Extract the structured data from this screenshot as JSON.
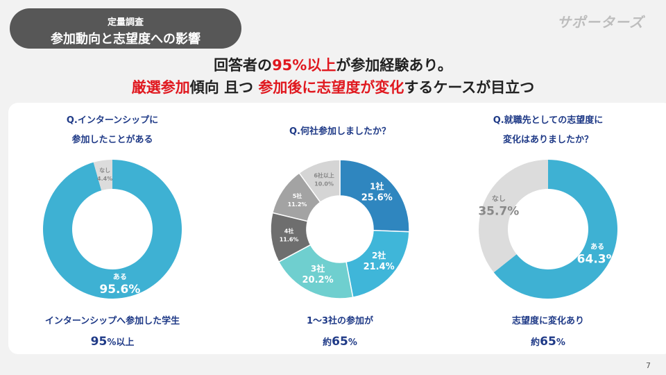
{
  "header": {
    "badge_sub": "定量調査",
    "badge_title": "参加動向と志望度への影響",
    "logo": "サポーターズ"
  },
  "headline": {
    "line1": [
      {
        "t": "回答者の",
        "red": false
      },
      {
        "t": "95%以上",
        "red": true
      },
      {
        "t": "が参加経験あり。",
        "red": false
      }
    ],
    "line2": [
      {
        "t": "厳選参加",
        "red": true
      },
      {
        "t": "傾向 且つ ",
        "red": false
      },
      {
        "t": "参加後に志望度が変化",
        "red": true
      },
      {
        "t": "するケースが目立つ",
        "red": false
      }
    ]
  },
  "page_number": "7",
  "chart_data": [
    {
      "type": "pie",
      "title_lines": [
        "Q.インターンシップに",
        "参加したことがある"
      ],
      "slices": [
        {
          "label": "ある",
          "value": 95.6,
          "value_text": "95.6%",
          "color": "#3eb1d3"
        },
        {
          "label": "なし",
          "value": 4.4,
          "value_text": "4.4%",
          "color": "#dcdcdc"
        }
      ],
      "footer_line1": "インターンシップへ参加した学生",
      "footer_big": "95",
      "footer_small": "%以上"
    },
    {
      "type": "pie",
      "title_lines": [
        "Q.何社参加しましたか？"
      ],
      "slices": [
        {
          "label": "1社",
          "value": 25.6,
          "value_text": "25.6%",
          "color": "#2f86bf"
        },
        {
          "label": "2社",
          "value": 21.4,
          "value_text": "21.4%",
          "color": "#3fb6d9"
        },
        {
          "label": "3社",
          "value": 20.2,
          "value_text": "20.2%",
          "color": "#6fcfcf"
        },
        {
          "label": "4社",
          "value": 11.6,
          "value_text": "11.6%",
          "color": "#6e6e6e"
        },
        {
          "label": "5社",
          "value": 11.2,
          "value_text": "11.2%",
          "color": "#a3a3a3"
        },
        {
          "label": "6社以上",
          "value": 10.0,
          "value_text": "10.0%",
          "color": "#d5d5d5"
        }
      ],
      "footer_line1": "1〜3社の参加が",
      "footer_pre": "約",
      "footer_big": "65",
      "footer_small": "%"
    },
    {
      "type": "pie",
      "title_lines": [
        "Q.就職先としての志望度に",
        "変化はありましたか？"
      ],
      "slices": [
        {
          "label": "ある",
          "value": 64.3,
          "value_text": "64.3%",
          "color": "#3eb1d3"
        },
        {
          "label": "なし",
          "value": 35.7,
          "value_text": "35.7%",
          "color": "#dcdcdc"
        }
      ],
      "footer_line1": "志望度に変化あり",
      "footer_pre": "約",
      "footer_big": "65",
      "footer_small": "%"
    }
  ]
}
